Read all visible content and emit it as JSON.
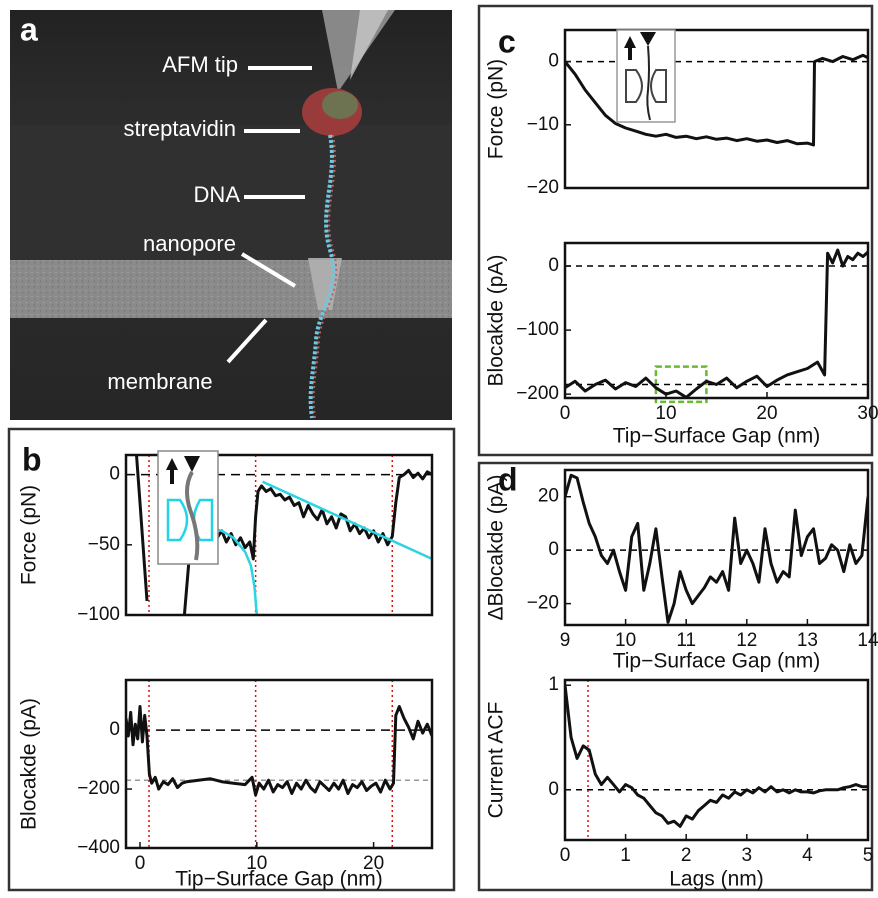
{
  "illustration": {
    "panel_label": "a",
    "labels": [
      "AFM tip",
      "streptavidin",
      "DNA",
      "nanopore",
      "membrane"
    ]
  },
  "chart_data": [
    {
      "type": "line",
      "panel_label": "b",
      "ylabel": "Force (pN)",
      "xlim": [
        -1.2,
        25
      ],
      "ylim": [
        -100,
        14
      ],
      "yticks": [
        {
          "value": -100,
          "label": "−100"
        },
        {
          "value": -50,
          "label": "−50"
        },
        0
      ],
      "hlines": [
        {
          "value": 0,
          "color": "#000000",
          "dash": "9 6"
        }
      ],
      "vlines": [
        {
          "value": 0.77,
          "color": "#dd1111",
          "dash": "2 3"
        },
        {
          "value": 9.9,
          "color": "#dd1111",
          "dash": "2 3"
        },
        {
          "value": 21.6,
          "color": "#dd1111",
          "dash": "2 3"
        }
      ],
      "series": [
        {
          "color": "#111111",
          "x": [
            -0.3,
            0,
            0.3,
            0.6,
            0.8,
            3.8,
            4.2,
            4.6,
            5.0,
            5.4,
            5.8,
            6.2,
            6.6,
            7.0,
            7.4,
            7.8,
            8.2,
            8.6,
            9.0,
            9.4,
            9.7,
            9.9,
            10.1,
            10.4,
            10.8,
            11.2,
            11.6,
            12,
            12.4,
            12.8,
            13.2,
            13.6,
            14,
            14.4,
            14.8,
            15.2,
            15.6,
            16,
            16.4,
            16.8,
            17.2,
            17.6,
            18,
            18.4,
            18.8,
            19.2,
            19.6,
            20,
            20.4,
            20.8,
            21.2,
            21.6,
            21.9,
            22.2,
            22.6,
            23,
            23.4,
            23.8,
            24.2,
            24.6,
            25
          ],
          "values": [
            14,
            -20,
            -55,
            -90,
            null,
            -100,
            -60,
            -40,
            -38,
            -35,
            -42,
            -38,
            -45,
            -40,
            -48,
            -42,
            -50,
            -45,
            -52,
            -48,
            -60,
            -30,
            -12,
            -8,
            -12,
            -10,
            -15,
            -14,
            -18,
            -16,
            -22,
            -20,
            -30,
            -22,
            -28,
            -32,
            -25,
            -35,
            -30,
            -38,
            -28,
            -30,
            -40,
            -35,
            -42,
            -38,
            -45,
            -40,
            -48,
            -42,
            -50,
            -44,
            -20,
            -2,
            0,
            3,
            -2,
            1,
            -3,
            2,
            0
          ]
        },
        {
          "color": "#2ad4e0",
          "x": [
            5.2,
            6,
            7,
            8,
            9,
            9.5,
            9.8,
            10
          ],
          "values": [
            -38,
            -38,
            -40,
            -45,
            -55,
            -65,
            -80,
            -100
          ]
        },
        {
          "color": "#2ad4e0",
          "x": [
            10.5,
            25
          ],
          "values": [
            -5,
            -60
          ]
        }
      ]
    },
    {
      "type": "line",
      "ylabel": "Blocakde (pA)",
      "xlabel": "Tip−Surface Gap (nm)",
      "xlim": [
        -1.2,
        25
      ],
      "ylim": [
        -400,
        170
      ],
      "xticks": [
        0,
        10,
        20
      ],
      "yticks": [
        {
          "value": -400,
          "label": "−400"
        },
        {
          "value": -200,
          "label": "−200"
        },
        0
      ],
      "hlines": [
        {
          "value": 0,
          "color": "#000000",
          "dash": "9 6"
        },
        {
          "value": -170,
          "color": "#999999",
          "dash": "5 4"
        }
      ],
      "vlines": [
        {
          "value": 0.77,
          "color": "#dd1111",
          "dash": "2 3"
        },
        {
          "value": 9.9,
          "color": "#dd1111",
          "dash": "2 3"
        },
        {
          "value": 21.6,
          "color": "#dd1111",
          "dash": "2 3"
        }
      ],
      "series": [
        {
          "color": "#111111",
          "x": [
            -1.2,
            -1,
            -0.8,
            -0.6,
            -0.4,
            -0.2,
            0,
            0.2,
            0.4,
            0.6,
            0.8,
            1.0,
            1.3,
            1.6,
            2,
            2.4,
            2.8,
            3.2,
            3.6,
            4,
            5,
            6,
            7,
            8,
            9,
            9.6,
            9.9,
            10.2,
            10.6,
            11,
            11.4,
            11.8,
            12.2,
            12.6,
            13,
            13.4,
            13.8,
            14.2,
            14.6,
            15,
            15.4,
            15.8,
            16.2,
            16.6,
            17,
            17.4,
            17.8,
            18.2,
            18.6,
            19,
            19.4,
            19.8,
            20.2,
            20.6,
            21,
            21.4,
            21.7,
            21.9,
            22.2,
            22.6,
            23,
            23.4,
            23.8,
            24.2,
            24.6,
            25
          ],
          "values": [
            40,
            -20,
            60,
            -50,
            20,
            -30,
            80,
            -40,
            50,
            -20,
            -150,
            -180,
            -160,
            -200,
            -175,
            -185,
            -165,
            -195,
            -180,
            -175,
            -170,
            -165,
            -175,
            -180,
            -185,
            -160,
            -220,
            -180,
            -200,
            -170,
            -210,
            -185,
            -195,
            -175,
            -215,
            -180,
            -200,
            -170,
            -195,
            -210,
            -175,
            -190,
            -205,
            -180,
            -200,
            -170,
            -215,
            -185,
            -195,
            -175,
            -205,
            -190,
            -180,
            -210,
            -170,
            -200,
            -180,
            50,
            80,
            40,
            10,
            -30,
            30,
            -10,
            20,
            -20
          ]
        }
      ]
    },
    {
      "type": "line",
      "panel_label": "c",
      "ylabel": "Force (pN)",
      "xlim": [
        0,
        30
      ],
      "ylim": [
        -20,
        5
      ],
      "yticks": [
        {
          "value": -20,
          "label": "−20"
        },
        {
          "value": -10,
          "label": "−10"
        },
        0
      ],
      "hlines": [
        {
          "value": 0,
          "color": "#000000",
          "dash": "6 5"
        }
      ],
      "series": [
        {
          "color": "#111111",
          "x": [
            0,
            1,
            2,
            3,
            4,
            5,
            6,
            7,
            8,
            9,
            10,
            11,
            12,
            13,
            14,
            15,
            16,
            17,
            18,
            19,
            20,
            21,
            22,
            23,
            24,
            24.6,
            24.7,
            25.5,
            26.5,
            27.5,
            28.5,
            29.5,
            30
          ],
          "values": [
            0,
            -2,
            -4.5,
            -6.5,
            -8.5,
            -9.8,
            -10.5,
            -11,
            -11.5,
            -11.8,
            -11.5,
            -12,
            -11.8,
            -12.2,
            -11.9,
            -12.3,
            -12.1,
            -12.5,
            -12.2,
            -12.6,
            -12.4,
            -12.8,
            -12.5,
            -13,
            -12.9,
            -13.2,
            0,
            0.5,
            0,
            0.8,
            0.3,
            1,
            0.6
          ]
        }
      ]
    },
    {
      "type": "line",
      "ylabel": "Blocakde (pA)",
      "xlabel": "Tip−Surface Gap (nm)",
      "xlim": [
        0,
        30
      ],
      "ylim": [
        -206,
        36
      ],
      "xticks": [
        0,
        10,
        20,
        30
      ],
      "yticks": [
        {
          "value": -200,
          "label": "−200"
        },
        {
          "value": -100,
          "label": "−100"
        },
        0
      ],
      "hlines": [
        {
          "value": 0,
          "color": "#000000",
          "dash": "6 5"
        },
        {
          "value": -185,
          "color": "#000000",
          "dash": "6 5"
        }
      ],
      "highlight": {
        "x": [
          9,
          14
        ],
        "y": [
          -157,
          -212
        ],
        "color": "#66bb33"
      },
      "series": [
        {
          "color": "#111111",
          "x": [
            0,
            1,
            2,
            3,
            4,
            5,
            6,
            7,
            8,
            9,
            10,
            11,
            12,
            13,
            14,
            15,
            16,
            17,
            18,
            19,
            20,
            21,
            22,
            23,
            24,
            25,
            25.7,
            26,
            26.5,
            27,
            27.5,
            28,
            28.5,
            29,
            29.5,
            30
          ],
          "values": [
            -190,
            -180,
            -195,
            -185,
            -178,
            -192,
            -182,
            -188,
            -175,
            -190,
            -200,
            -195,
            -205,
            -192,
            -180,
            -185,
            -175,
            -190,
            -180,
            -172,
            -188,
            -178,
            -170,
            -165,
            -160,
            -150,
            -170,
            20,
            5,
            25,
            0,
            15,
            10,
            20,
            15,
            22
          ]
        }
      ]
    },
    {
      "type": "line",
      "panel_label": "d",
      "ylabel": "ΔBlocakde (pA)",
      "xlabel": "Tip−Surface Gap (nm)",
      "xlim": [
        9,
        14
      ],
      "ylim": [
        -28,
        30
      ],
      "xticks": [
        9,
        10,
        11,
        12,
        13,
        14
      ],
      "yticks": [
        {
          "value": -20,
          "label": "−20"
        },
        0,
        20
      ],
      "hlines": [
        {
          "value": 0,
          "color": "#000000",
          "dash": "6 5"
        }
      ],
      "series": [
        {
          "color": "#111111",
          "x": [
            9.0,
            9.1,
            9.2,
            9.3,
            9.4,
            9.5,
            9.6,
            9.7,
            9.8,
            9.9,
            10.0,
            10.1,
            10.2,
            10.3,
            10.4,
            10.5,
            10.6,
            10.7,
            10.8,
            10.9,
            11.0,
            11.1,
            11.2,
            11.3,
            11.4,
            11.5,
            11.6,
            11.7,
            11.8,
            11.9,
            12.0,
            12.1,
            12.2,
            12.3,
            12.4,
            12.5,
            12.6,
            12.7,
            12.8,
            12.9,
            13.0,
            13.1,
            13.2,
            13.3,
            13.4,
            13.5,
            13.6,
            13.7,
            13.8,
            13.9,
            14.0
          ],
          "values": [
            20,
            28,
            27,
            18,
            10,
            5,
            -2,
            -5,
            0,
            -8,
            -15,
            5,
            10,
            -15,
            -5,
            8,
            -10,
            -27,
            -20,
            -8,
            -15,
            -20,
            -17,
            -14,
            -10,
            -12,
            -8,
            -15,
            12,
            -5,
            0,
            -5,
            -12,
            8,
            -5,
            -12,
            -8,
            -10,
            15,
            -2,
            5,
            8,
            -5,
            -3,
            2,
            0,
            -8,
            2,
            -5,
            -2,
            20
          ]
        }
      ]
    },
    {
      "type": "line",
      "ylabel": "Current ACF",
      "xlabel": "Lags (nm)",
      "xlim": [
        0,
        5
      ],
      "ylim": [
        -0.48,
        1.05
      ],
      "xticks": [
        0,
        1,
        2,
        3,
        4,
        5
      ],
      "yticks": [
        0,
        1
      ],
      "hlines": [
        {
          "value": 0,
          "color": "#000000",
          "dash": "6 5"
        }
      ],
      "vlines": [
        {
          "value": 0.38,
          "color": "#dd1111",
          "dash": "2 3"
        }
      ],
      "series": [
        {
          "color": "#111111",
          "x": [
            0,
            0.1,
            0.2,
            0.3,
            0.4,
            0.5,
            0.6,
            0.7,
            0.8,
            0.9,
            1.0,
            1.1,
            1.2,
            1.3,
            1.4,
            1.5,
            1.6,
            1.7,
            1.8,
            1.9,
            2.0,
            2.1,
            2.2,
            2.3,
            2.4,
            2.5,
            2.6,
            2.7,
            2.8,
            2.9,
            3.0,
            3.1,
            3.2,
            3.3,
            3.4,
            3.5,
            3.6,
            3.7,
            3.8,
            3.9,
            4.0,
            4.1,
            4.2,
            4.3,
            4.4,
            4.5,
            4.6,
            4.7,
            4.8,
            4.9,
            5.0
          ],
          "values": [
            1,
            0.5,
            0.3,
            0.42,
            0.38,
            0.15,
            0.05,
            0.12,
            0.05,
            -0.02,
            0.05,
            0.02,
            -0.05,
            -0.08,
            -0.15,
            -0.22,
            -0.25,
            -0.32,
            -0.3,
            -0.35,
            -0.25,
            -0.28,
            -0.2,
            -0.15,
            -0.1,
            -0.12,
            -0.05,
            -0.08,
            -0.02,
            -0.05,
            0.0,
            -0.03,
            0.02,
            -0.02,
            0.03,
            -0.02,
            0.0,
            -0.03,
            0.0,
            -0.02,
            -0.02,
            -0.03,
            -0.01,
            0.0,
            0.0,
            0.0,
            0.02,
            0.03,
            0.05,
            0.03,
            0.03
          ]
        }
      ]
    }
  ]
}
